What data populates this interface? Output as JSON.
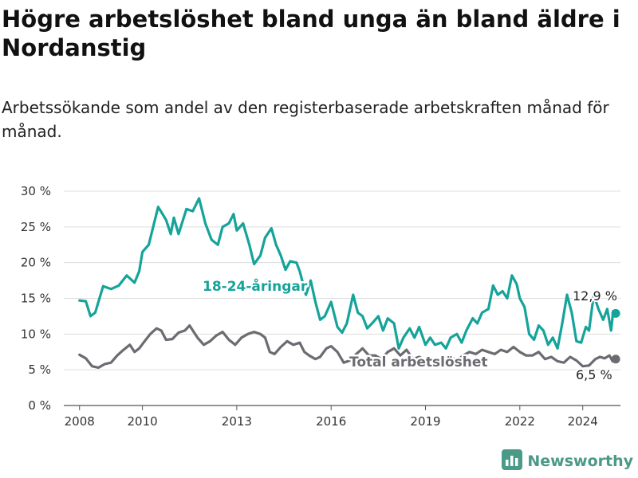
{
  "title": "Högre arbetslöshet bland unga än bland äldre i Nordanstig",
  "subtitle": "Arbetssökande som andel av den registerbaserade arbetskraften månad för månad.",
  "brand": {
    "name": "Newsworthy",
    "color": "#4a9a88",
    "icon": "bar-chart-logo-icon"
  },
  "chart_data": {
    "type": "line",
    "xlim": [
      2007.5,
      2025.2
    ],
    "ylim": [
      0,
      30
    ],
    "y_ticks": [
      0,
      5,
      10,
      15,
      20,
      25,
      30
    ],
    "y_tick_labels": [
      "0 %",
      "5 %",
      "10 %",
      "15 %",
      "20 %",
      "25 %",
      "30 %"
    ],
    "x_ticks": [
      2008,
      2010,
      2013,
      2016,
      2019,
      2022,
      2024
    ],
    "x_tick_labels": [
      "2008",
      "2010",
      "2013",
      "2016",
      "2019",
      "2022",
      "2024"
    ],
    "grid": "horizontal",
    "series": [
      {
        "name": "18-24-åringar",
        "color": "#15a39a",
        "end_label": "12,9 %",
        "points": [
          [
            2008.0,
            14.7
          ],
          [
            2008.2,
            14.6
          ],
          [
            2008.35,
            12.5
          ],
          [
            2008.5,
            13.0
          ],
          [
            2008.75,
            16.7
          ],
          [
            2009.0,
            16.3
          ],
          [
            2009.25,
            16.8
          ],
          [
            2009.5,
            18.2
          ],
          [
            2009.75,
            17.2
          ],
          [
            2009.9,
            18.8
          ],
          [
            2010.0,
            21.5
          ],
          [
            2010.2,
            22.5
          ],
          [
            2010.5,
            27.8
          ],
          [
            2010.75,
            26.0
          ],
          [
            2010.9,
            24.0
          ],
          [
            2011.0,
            26.3
          ],
          [
            2011.15,
            24.0
          ],
          [
            2011.4,
            27.5
          ],
          [
            2011.6,
            27.2
          ],
          [
            2011.8,
            29.0
          ],
          [
            2012.0,
            25.5
          ],
          [
            2012.2,
            23.2
          ],
          [
            2012.4,
            22.5
          ],
          [
            2012.55,
            25.0
          ],
          [
            2012.75,
            25.5
          ],
          [
            2012.9,
            26.8
          ],
          [
            2013.0,
            24.5
          ],
          [
            2013.2,
            25.5
          ],
          [
            2013.4,
            22.5
          ],
          [
            2013.55,
            19.8
          ],
          [
            2013.75,
            21.0
          ],
          [
            2013.9,
            23.5
          ],
          [
            2014.1,
            24.8
          ],
          [
            2014.25,
            22.5
          ],
          [
            2014.4,
            21.0
          ],
          [
            2014.55,
            19.0
          ],
          [
            2014.7,
            20.2
          ],
          [
            2014.9,
            20.0
          ],
          [
            2015.0,
            18.8
          ],
          [
            2015.2,
            15.5
          ],
          [
            2015.35,
            17.5
          ],
          [
            2015.5,
            14.5
          ],
          [
            2015.65,
            12.0
          ],
          [
            2015.8,
            12.5
          ],
          [
            2016.0,
            14.5
          ],
          [
            2016.2,
            11.0
          ],
          [
            2016.35,
            10.2
          ],
          [
            2016.5,
            11.5
          ],
          [
            2016.7,
            15.5
          ],
          [
            2016.85,
            13.0
          ],
          [
            2017.0,
            12.5
          ],
          [
            2017.15,
            10.8
          ],
          [
            2017.3,
            11.5
          ],
          [
            2017.5,
            12.5
          ],
          [
            2017.65,
            10.5
          ],
          [
            2017.8,
            12.2
          ],
          [
            2018.0,
            11.5
          ],
          [
            2018.15,
            8.0
          ],
          [
            2018.3,
            9.5
          ],
          [
            2018.5,
            10.8
          ],
          [
            2018.65,
            9.5
          ],
          [
            2018.8,
            11.0
          ],
          [
            2019.0,
            8.5
          ],
          [
            2019.15,
            9.5
          ],
          [
            2019.3,
            8.5
          ],
          [
            2019.5,
            8.8
          ],
          [
            2019.65,
            8.0
          ],
          [
            2019.8,
            9.5
          ],
          [
            2020.0,
            10.0
          ],
          [
            2020.15,
            8.8
          ],
          [
            2020.3,
            10.5
          ],
          [
            2020.5,
            12.2
          ],
          [
            2020.65,
            11.5
          ],
          [
            2020.8,
            13.0
          ],
          [
            2021.0,
            13.5
          ],
          [
            2021.15,
            16.8
          ],
          [
            2021.3,
            15.5
          ],
          [
            2021.45,
            16.0
          ],
          [
            2021.6,
            15.0
          ],
          [
            2021.75,
            18.2
          ],
          [
            2021.9,
            17.0
          ],
          [
            2022.0,
            15.0
          ],
          [
            2022.15,
            13.8
          ],
          [
            2022.3,
            10.0
          ],
          [
            2022.45,
            9.2
          ],
          [
            2022.6,
            11.2
          ],
          [
            2022.75,
            10.5
          ],
          [
            2022.9,
            8.5
          ],
          [
            2023.05,
            9.5
          ],
          [
            2023.2,
            8.0
          ],
          [
            2023.35,
            11.5
          ],
          [
            2023.5,
            15.5
          ],
          [
            2023.65,
            13.0
          ],
          [
            2023.8,
            9.0
          ],
          [
            2023.95,
            8.8
          ],
          [
            2024.1,
            11.0
          ],
          [
            2024.2,
            10.5
          ],
          [
            2024.35,
            15.5
          ],
          [
            2024.5,
            13.5
          ],
          [
            2024.65,
            12.0
          ],
          [
            2024.78,
            13.5
          ],
          [
            2024.9,
            10.5
          ],
          [
            2024.97,
            13.2
          ],
          [
            2025.05,
            12.9
          ]
        ]
      },
      {
        "name": "Total arbetslöshet",
        "color": "#6b6b72",
        "end_label": "6,5 %",
        "points": [
          [
            2008.0,
            7.1
          ],
          [
            2008.2,
            6.6
          ],
          [
            2008.4,
            5.5
          ],
          [
            2008.6,
            5.3
          ],
          [
            2008.8,
            5.8
          ],
          [
            2009.0,
            6.0
          ],
          [
            2009.2,
            7.0
          ],
          [
            2009.4,
            7.8
          ],
          [
            2009.6,
            8.5
          ],
          [
            2009.75,
            7.5
          ],
          [
            2009.9,
            8.0
          ],
          [
            2010.0,
            8.6
          ],
          [
            2010.25,
            10.0
          ],
          [
            2010.45,
            10.8
          ],
          [
            2010.6,
            10.5
          ],
          [
            2010.75,
            9.2
          ],
          [
            2010.95,
            9.3
          ],
          [
            2011.15,
            10.2
          ],
          [
            2011.35,
            10.5
          ],
          [
            2011.5,
            11.2
          ],
          [
            2011.75,
            9.5
          ],
          [
            2011.95,
            8.5
          ],
          [
            2012.15,
            9.0
          ],
          [
            2012.35,
            9.8
          ],
          [
            2012.55,
            10.3
          ],
          [
            2012.75,
            9.2
          ],
          [
            2012.95,
            8.5
          ],
          [
            2013.15,
            9.5
          ],
          [
            2013.35,
            10.0
          ],
          [
            2013.55,
            10.3
          ],
          [
            2013.75,
            10.0
          ],
          [
            2013.9,
            9.5
          ],
          [
            2014.05,
            7.5
          ],
          [
            2014.2,
            7.2
          ],
          [
            2014.4,
            8.2
          ],
          [
            2014.6,
            9.0
          ],
          [
            2014.8,
            8.5
          ],
          [
            2015.0,
            8.8
          ],
          [
            2015.15,
            7.5
          ],
          [
            2015.3,
            7.0
          ],
          [
            2015.5,
            6.5
          ],
          [
            2015.65,
            6.8
          ],
          [
            2015.85,
            8.0
          ],
          [
            2016.0,
            8.3
          ],
          [
            2016.2,
            7.5
          ],
          [
            2016.4,
            6.0
          ],
          [
            2016.6,
            6.3
          ],
          [
            2016.8,
            7.2
          ],
          [
            2017.0,
            8.0
          ],
          [
            2017.2,
            7.0
          ],
          [
            2017.4,
            7.0
          ],
          [
            2017.6,
            6.5
          ],
          [
            2017.8,
            7.5
          ],
          [
            2018.0,
            8.0
          ],
          [
            2018.2,
            7.0
          ],
          [
            2018.4,
            7.8
          ],
          [
            2018.6,
            6.5
          ],
          [
            2018.8,
            6.8
          ],
          [
            2019.0,
            6.3
          ],
          [
            2019.2,
            6.5
          ],
          [
            2019.4,
            6.0
          ],
          [
            2019.6,
            6.3
          ],
          [
            2019.8,
            6.8
          ],
          [
            2020.0,
            6.3
          ],
          [
            2020.2,
            7.0
          ],
          [
            2020.4,
            7.5
          ],
          [
            2020.6,
            7.2
          ],
          [
            2020.8,
            7.8
          ],
          [
            2021.0,
            7.5
          ],
          [
            2021.2,
            7.2
          ],
          [
            2021.4,
            7.8
          ],
          [
            2021.6,
            7.5
          ],
          [
            2021.8,
            8.2
          ],
          [
            2022.0,
            7.5
          ],
          [
            2022.2,
            7.0
          ],
          [
            2022.4,
            7.0
          ],
          [
            2022.6,
            7.5
          ],
          [
            2022.8,
            6.5
          ],
          [
            2023.0,
            6.8
          ],
          [
            2023.2,
            6.2
          ],
          [
            2023.4,
            6.0
          ],
          [
            2023.6,
            6.8
          ],
          [
            2023.8,
            6.3
          ],
          [
            2024.0,
            5.5
          ],
          [
            2024.2,
            5.6
          ],
          [
            2024.4,
            6.5
          ],
          [
            2024.55,
            6.8
          ],
          [
            2024.7,
            6.6
          ],
          [
            2024.85,
            7.0
          ],
          [
            2024.95,
            6.2
          ],
          [
            2025.05,
            6.5
          ]
        ]
      }
    ]
  }
}
